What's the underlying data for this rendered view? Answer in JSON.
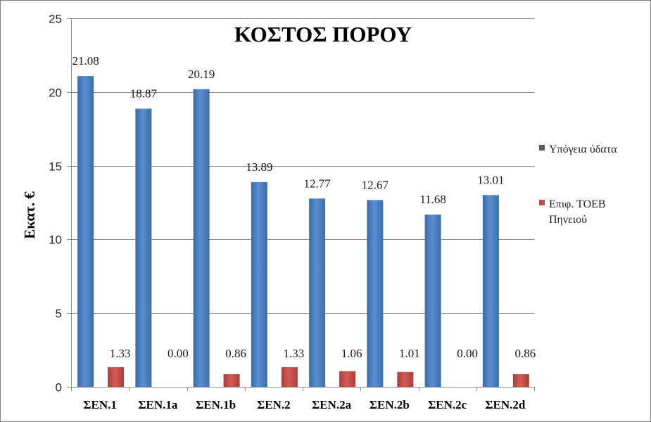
{
  "chart_data": {
    "type": "bar",
    "title": "ΚΟΣΤΟΣ ΠΟΡΟΥ",
    "ylabel": "Εκατ. €",
    "xlabel": "",
    "ylim": [
      0,
      25
    ],
    "yticks": [
      0,
      5,
      10,
      15,
      20,
      25
    ],
    "grid": true,
    "legend_position": "right",
    "categories": [
      "ΣΕΝ.1",
      "ΣΕΝ.1a",
      "ΣΕΝ.1b",
      "ΣΕΝ.2",
      "ΣΕΝ.2a",
      "ΣΕΝ.2b",
      "ΣΕΝ.2c",
      "ΣΕΝ.2d"
    ],
    "series": [
      {
        "name": "Υπόγεια ύδατα",
        "color": "#4a7ebb",
        "values": [
          21.08,
          18.87,
          20.19,
          13.89,
          12.77,
          12.67,
          11.68,
          13.01
        ],
        "labels": [
          "21.08",
          "18.87",
          "20.19",
          "13.89",
          "12.77",
          "12.67",
          "11.68",
          "13.01"
        ]
      },
      {
        "name": "Επιφ. ΤΟΕΒ Πηνειού",
        "name_lines": [
          "Επιφ. ΤΟΕΒ",
          "Πηνειού"
        ],
        "color": "#be4b48",
        "values": [
          1.33,
          0.0,
          0.86,
          1.33,
          1.06,
          1.01,
          0.0,
          0.86
        ],
        "labels": [
          "1.33",
          "0.00",
          "0.86",
          "1.33",
          "1.06",
          "1.01",
          "0.00",
          "0.86"
        ]
      }
    ]
  }
}
